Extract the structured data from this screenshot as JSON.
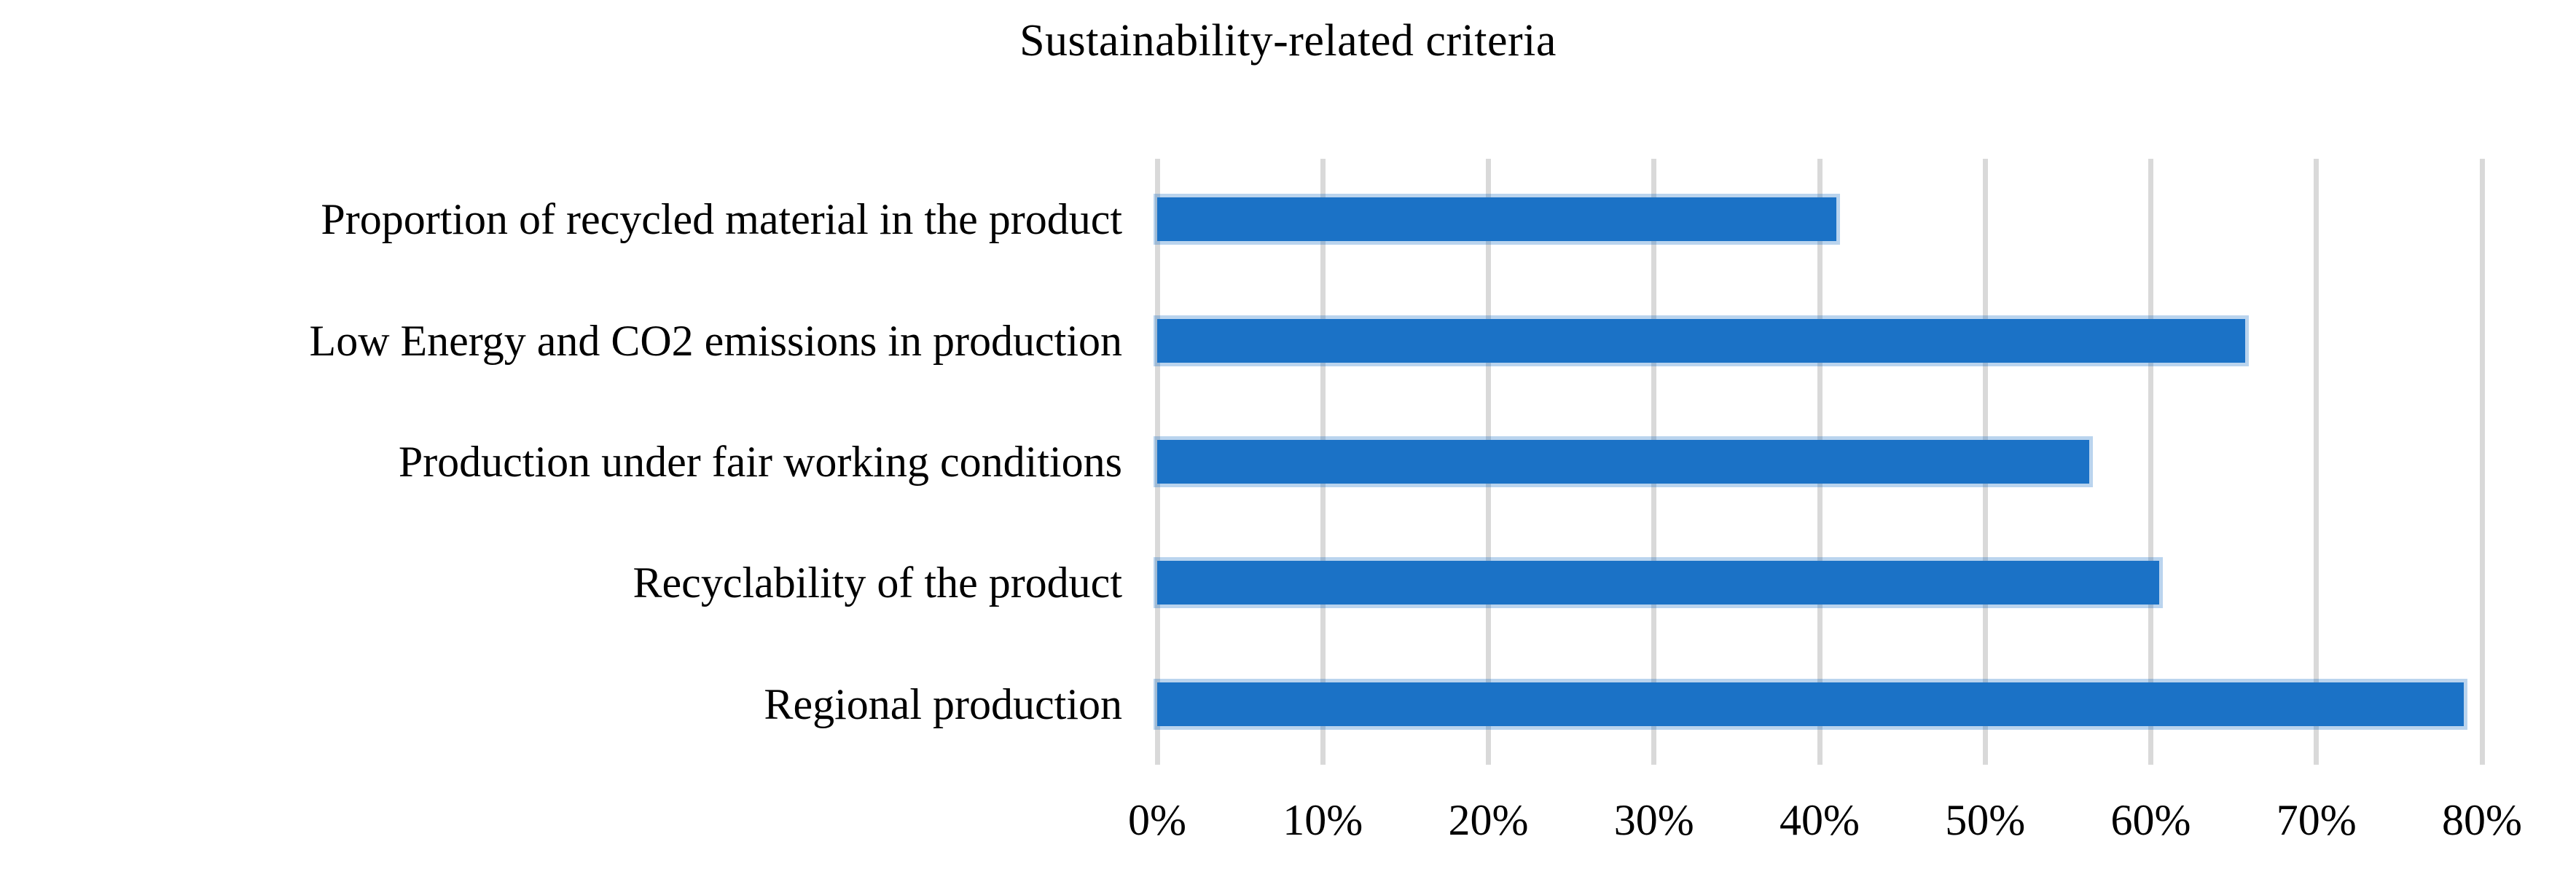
{
  "chart_data": {
    "type": "bar",
    "orientation": "horizontal",
    "title": "Sustainability-related criteria",
    "categories": [
      "Proportion of recycled material in the product",
      "Low Energy and CO2 emissions in production",
      "Production under fair working conditions",
      "Recyclability of the product",
      "Regional production"
    ],
    "values": [
      41,
      65.7,
      56.3,
      60.5,
      78.9
    ],
    "unit": "%",
    "xlabel": "",
    "ylabel": "",
    "xlim": [
      0,
      80
    ],
    "x_tick_step": 10,
    "x_tick_labels": [
      "0%",
      "10%",
      "20%",
      "30%",
      "40%",
      "50%",
      "60%",
      "70%",
      "80%"
    ],
    "grid": true,
    "legend": false,
    "colors": {
      "bar_fill": "#1B72C6",
      "bar_halo": "rgba(27,114,198,0.30)",
      "gridline": "#D9D9D9",
      "text": "#000000",
      "background": "#FFFFFF"
    }
  }
}
